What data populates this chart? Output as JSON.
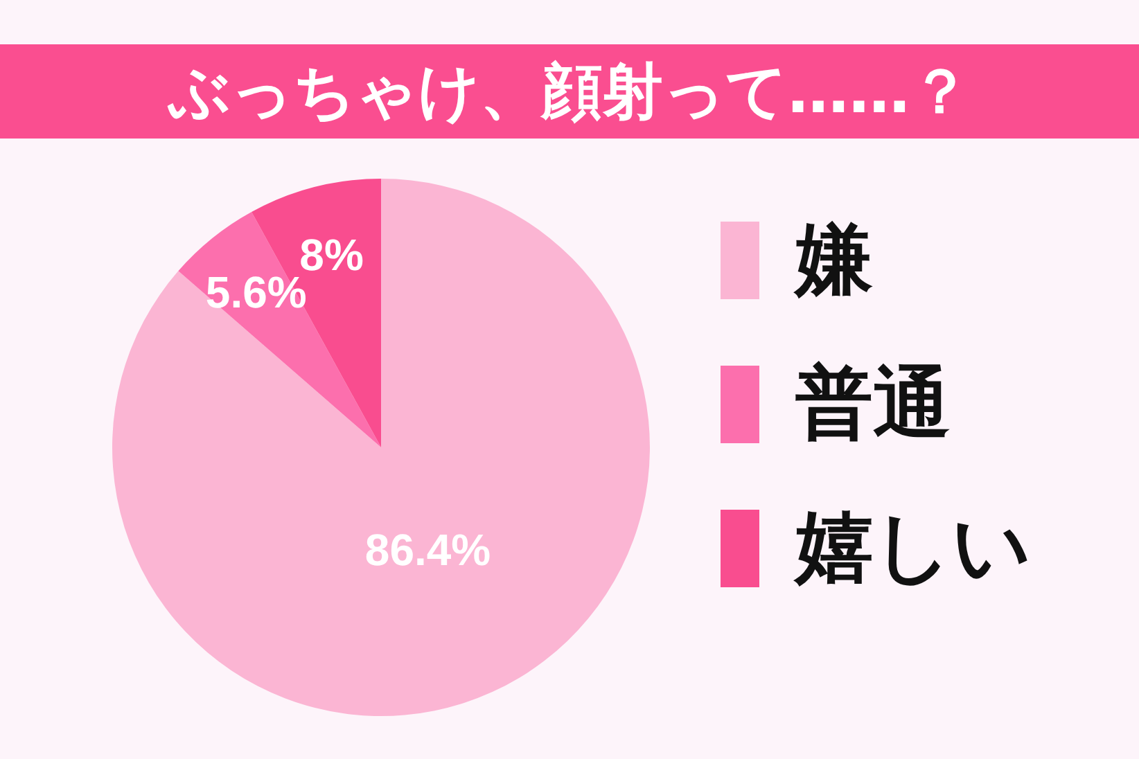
{
  "chart_data": {
    "type": "pie",
    "title": "ぶっちゃけ、顔射って……？",
    "categories": [
      "嫌",
      "普通",
      "嬉しい"
    ],
    "values": [
      86.4,
      5.6,
      8
    ],
    "colors": [
      "#fbb5d3",
      "#fc6fad",
      "#f94d8f"
    ],
    "value_labels": [
      "86.4%",
      "5.6%",
      "8%"
    ],
    "legend": "right"
  }
}
